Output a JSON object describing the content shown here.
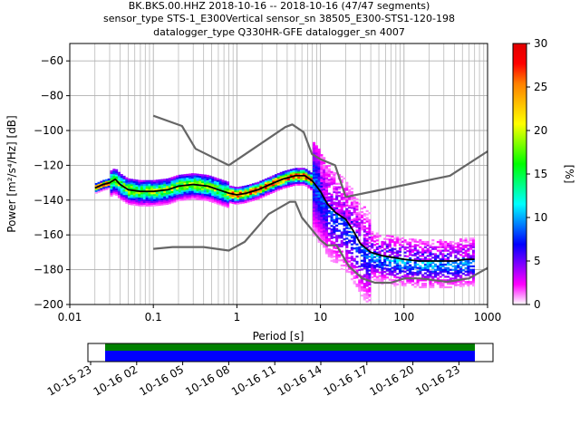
{
  "titles": [
    "BK.BKS.00.HHZ   2018-10-16 -- 2018-10-16  (47/47 segments)",
    "sensor_type STS-1_E300Vertical sensor_sn 38505_E300-STS1-120-198",
    "datalogger_type Q330HR-GFE datalogger_sn 4007"
  ],
  "chart_data": [
    {
      "type": "heatmap",
      "title": "BK.BKS.00.HHZ   2018-10-16 -- 2018-10-16  (47/47 segments)",
      "xlabel": "Period [s]",
      "ylabel": "Power [m²/s⁴/Hz] [dB]",
      "xscale": "log",
      "xlim": [
        0.01,
        1000
      ],
      "ylim": [
        -200,
        -50
      ],
      "grid": true,
      "x_ticks": [
        {
          "label": "0.01",
          "value": 0.01
        },
        {
          "label": "0.1",
          "value": 0.1
        },
        {
          "label": "1",
          "value": 1
        },
        {
          "label": "10",
          "value": 10
        },
        {
          "label": "100",
          "value": 100
        },
        {
          "label": "1000",
          "value": 1000
        }
      ],
      "y_ticks": [
        -60,
        -80,
        -100,
        -120,
        -140,
        -160,
        -180,
        -200
      ],
      "colorbar": {
        "label": "[%]",
        "min": 0,
        "max": 30,
        "ticks": [
          0,
          5,
          10,
          15,
          20,
          25,
          30
        ],
        "colormap": [
          "#ffffff",
          "#ff00ff",
          "#8000ff",
          "#0000ff",
          "#0080ff",
          "#00ffff",
          "#00ff80",
          "#00ff00",
          "#80ff00",
          "#ffff00",
          "#ffc000",
          "#ff8000",
          "#ff0000",
          "#e00000"
        ]
      },
      "series": [
        {
          "role": "noise-model-high",
          "color": "#666666",
          "x": [
            0.1,
            0.22,
            0.32,
            0.8,
            3.8,
            4.6,
            6.3,
            7.9,
            10,
            15,
            20,
            21,
            354.8,
            1000
          ],
          "y": [
            -91.5,
            -97.4,
            -110.5,
            -120,
            -98,
            -96.5,
            -101,
            -113.5,
            -116.5,
            -120,
            -138,
            -138,
            -126,
            -112
          ]
        },
        {
          "role": "noise-model-low",
          "color": "#666666",
          "x": [
            0.1,
            0.17,
            0.4,
            0.8,
            1.24,
            2.4,
            4.3,
            5,
            6,
            10,
            12,
            15.6,
            21.9,
            31.6,
            45,
            70,
            101,
            154,
            328,
            600,
            1000
          ],
          "y": [
            -168,
            -167,
            -167,
            -169,
            -164,
            -148,
            -141,
            -141,
            -150,
            -163,
            -166,
            -166,
            -178,
            -185,
            -187.5,
            -187.5,
            -185,
            -185,
            -187,
            -185,
            -179
          ]
        },
        {
          "role": "mode",
          "color": "#000000",
          "x": [
            0.02,
            0.025,
            0.03,
            0.035,
            0.04,
            0.05,
            0.07,
            0.1,
            0.15,
            0.2,
            0.3,
            0.45,
            0.6,
            0.8,
            1.0,
            1.3,
            1.8,
            2.5,
            3.5,
            5,
            6.5,
            8,
            10,
            12,
            15,
            20,
            25,
            30,
            40,
            55,
            75,
            100,
            150,
            250,
            400,
            550,
            700
          ],
          "y": [
            -133,
            -131,
            -130,
            -128,
            -131,
            -134,
            -135,
            -135,
            -134,
            -132,
            -131,
            -132,
            -134,
            -136,
            -137,
            -136,
            -134,
            -131,
            -128,
            -126,
            -126,
            -129,
            -135,
            -142,
            -147,
            -151,
            -158,
            -165,
            -170,
            -172,
            -173,
            -174,
            -175,
            -175,
            -175,
            -174,
            -174
          ]
        }
      ],
      "time_bar": {
        "x_ticks": [
          "10-15 23",
          "10-16 02",
          "10-16 05",
          "10-16 08",
          "10-16 11",
          "10-16 14",
          "10-16 17",
          "10-16 20",
          "10-16 23"
        ],
        "coverage_colors": [
          "#008000",
          "#0000ff"
        ]
      }
    }
  ]
}
